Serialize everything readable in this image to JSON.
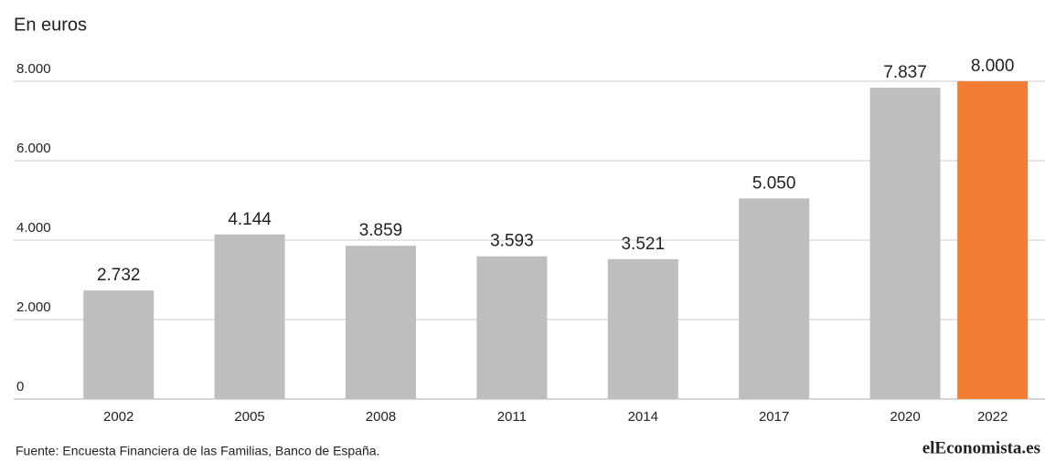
{
  "chart_data": {
    "type": "bar",
    "title": "En euros",
    "source": "Fuente: Encuesta Financiera de las Familias, Banco de España.",
    "logo": "elEconomista.es",
    "x": [
      2002,
      2005,
      2008,
      2011,
      2014,
      2017,
      2020,
      2022
    ],
    "values": [
      2732,
      4144,
      3859,
      3593,
      3521,
      5050,
      7837,
      8000
    ],
    "value_labels": [
      "2.732",
      "4.144",
      "3.859",
      "3.593",
      "3.521",
      "5.050",
      "7.837",
      "8.000"
    ],
    "colors": [
      "#bdbebe",
      "#bdbebe",
      "#bdbebe",
      "#bdbebe",
      "#bdbebe",
      "#bdbebe",
      "#bdbebe",
      "#f37d33"
    ],
    "xlim": [
      1999.6,
      2023.2
    ],
    "xticks": [
      2002,
      2005,
      2008,
      2011,
      2014,
      2017,
      2020,
      2022
    ],
    "ylim": [
      0,
      8000
    ],
    "yticks": [
      0,
      {
        "value": 2000,
        "label": "2.000"
      },
      {
        "value": 4000,
        "label": "4.000"
      },
      {
        "value": 6000,
        "label": "6.000"
      },
      {
        "value": 8000,
        "label": "8.000"
      }
    ],
    "grid": true
  }
}
